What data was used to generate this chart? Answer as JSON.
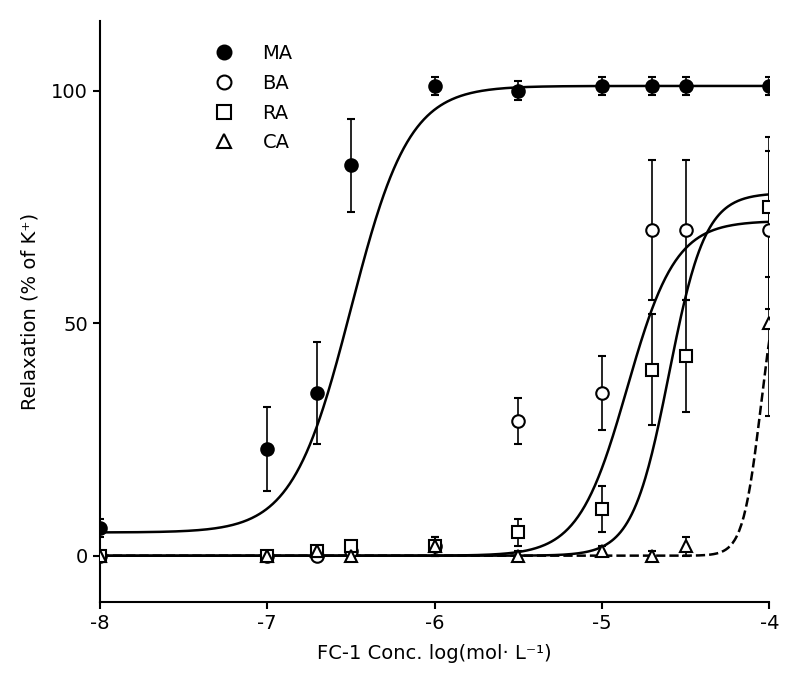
{
  "title": "",
  "xlabel": "FC-1 Conc. log(mol· L⁻¹)",
  "ylabel": "Relaxation (% of K⁺)",
  "xlim": [
    -8,
    -4
  ],
  "ylim": [
    -10,
    115
  ],
  "xticks": [
    -8,
    -7,
    -6,
    -5,
    -4
  ],
  "yticks": [
    0,
    50,
    100
  ],
  "background_color": "#ffffff",
  "markersize": 9,
  "linewidth": 1.8,
  "capsize": 3,
  "elinewidth": 1.2,
  "series": [
    {
      "name": "MA",
      "x": [
        -8,
        -7,
        -6.7,
        -6.5,
        -6,
        -5.5,
        -5,
        -4.7,
        -4.5,
        -4
      ],
      "y": [
        6,
        23,
        35,
        84,
        101,
        100,
        101,
        101,
        101,
        101
      ],
      "yerr": [
        2,
        9,
        11,
        10,
        2,
        2,
        2,
        2,
        2,
        2
      ],
      "marker": "o",
      "mfc": "black",
      "mec": "black",
      "ls": "-",
      "ec50_log": -6.5,
      "hill": 2.5,
      "top": 101,
      "bottom": 5
    },
    {
      "name": "BA",
      "x": [
        -8,
        -7,
        -6.7,
        -6.5,
        -6,
        -5.5,
        -5,
        -4.7,
        -4.5,
        -4
      ],
      "y": [
        0,
        0,
        0,
        1,
        2,
        29,
        35,
        70,
        70,
        70
      ],
      "yerr": [
        1,
        1,
        1,
        1,
        2,
        5,
        8,
        15,
        15,
        17
      ],
      "marker": "o",
      "mfc": "white",
      "mec": "black",
      "ls": "-",
      "ec50_log": -4.85,
      "hill": 3.0,
      "top": 72,
      "bottom": 0
    },
    {
      "name": "RA",
      "x": [
        -8,
        -7,
        -6.7,
        -6.5,
        -6,
        -5.5,
        -5,
        -4.7,
        -4.5,
        -4
      ],
      "y": [
        0,
        0,
        1,
        2,
        2,
        5,
        10,
        40,
        43,
        75
      ],
      "yerr": [
        1,
        1,
        1,
        1,
        2,
        3,
        5,
        12,
        12,
        15
      ],
      "marker": "s",
      "mfc": "white",
      "mec": "black",
      "ls": "-",
      "ec50_log": -4.6,
      "hill": 4.0,
      "top": 78,
      "bottom": 0
    },
    {
      "name": "CA",
      "x": [
        -8,
        -7,
        -6.7,
        -6.5,
        -6,
        -5.5,
        -5,
        -4.7,
        -4.5,
        -4
      ],
      "y": [
        0,
        0,
        1,
        0,
        2,
        0,
        1,
        0,
        2,
        50
      ],
      "yerr": [
        1,
        1,
        1,
        1,
        1,
        1,
        1,
        1,
        2,
        20
      ],
      "marker": "^",
      "mfc": "white",
      "mec": "black",
      "ls": "--",
      "ec50_log": -4.05,
      "hill": 8.0,
      "top": 65,
      "bottom": 0
    }
  ]
}
